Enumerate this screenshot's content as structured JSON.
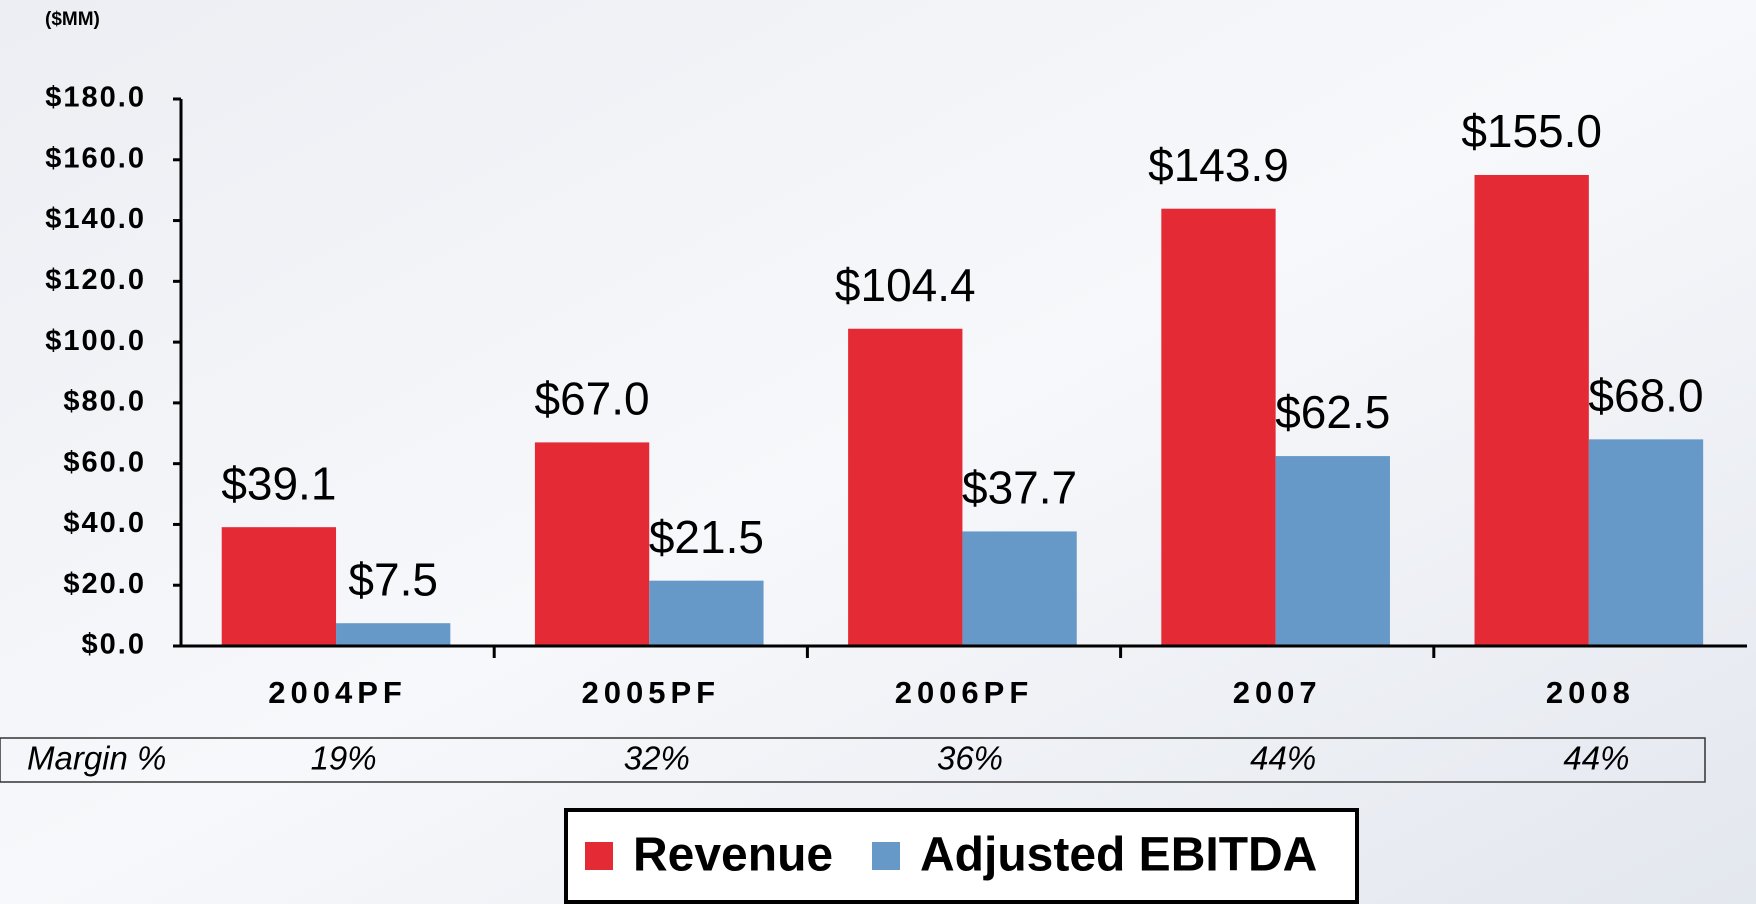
{
  "chart_data": {
    "type": "bar",
    "unit_label": "($MM)",
    "categories": [
      "2004PF",
      "2005PF",
      "2006PF",
      "2007",
      "2008"
    ],
    "series": [
      {
        "name": "Revenue",
        "color": "#e42a35",
        "values": [
          39.1,
          67.0,
          104.4,
          143.9,
          155.0
        ],
        "value_labels": [
          "$39.1",
          "$67.0",
          "$104.4",
          "$143.9",
          "$155.0"
        ]
      },
      {
        "name": "Adjusted EBITDA",
        "color": "#6699c8",
        "values": [
          7.5,
          21.5,
          37.7,
          62.5,
          68.0
        ],
        "value_labels": [
          "$7.5",
          "$21.5",
          "$37.7",
          "$62.5",
          "$68.0"
        ]
      }
    ],
    "ylim": [
      0,
      180
    ],
    "yticks": [
      {
        "value": 0,
        "label": "$0.0"
      },
      {
        "value": 20,
        "label": "$20.0"
      },
      {
        "value": 40,
        "label": "$40.0"
      },
      {
        "value": 60,
        "label": "$60.0"
      },
      {
        "value": 80,
        "label": "$80.0"
      },
      {
        "value": 100,
        "label": "$100.0"
      },
      {
        "value": 120,
        "label": "$120.0"
      },
      {
        "value": 140,
        "label": "$140.0"
      },
      {
        "value": 160,
        "label": "$160.0"
      },
      {
        "value": 180,
        "label": "$180.0"
      }
    ],
    "margin": {
      "label": "Margin %",
      "values": [
        19,
        32,
        36,
        44,
        44
      ],
      "value_labels": [
        "19%",
        "32%",
        "36%",
        "44%",
        "44%"
      ]
    },
    "legend": "bottom"
  }
}
